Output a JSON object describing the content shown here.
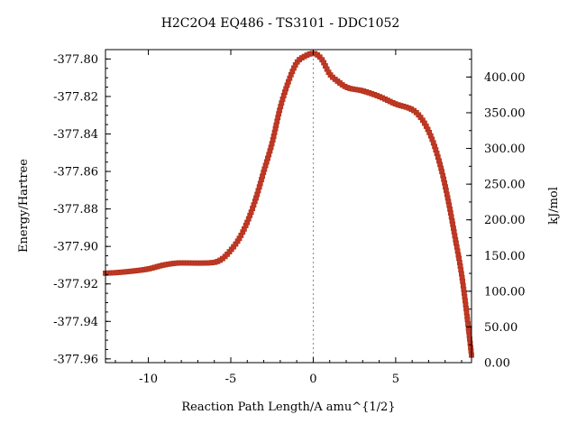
{
  "chart_data": {
    "type": "line",
    "title": "H2C2O4    EQ486 - TS3101 - DDC1052",
    "xlabel": "Reaction Path Length/A amu^{1/2}",
    "ylabel": "Energy/Hartree",
    "y2label": "kJ/mol",
    "xlim": [
      -12.6,
      9.6
    ],
    "ylim": [
      -377.962,
      -377.795
    ],
    "y2lim": [
      0.0,
      438.4
    ],
    "x_ticks": [
      -10,
      -5,
      0,
      5
    ],
    "x_tick_labels": [
      "-10",
      "-5",
      "0",
      "5"
    ],
    "y_ticks": [
      -377.8,
      -377.82,
      -377.84,
      -377.86,
      -377.88,
      -377.9,
      -377.92,
      -377.94,
      -377.96
    ],
    "y_tick_labels": [
      "-377.80",
      "-377.82",
      "-377.84",
      "-377.86",
      "-377.88",
      "-377.90",
      "-377.92",
      "-377.94",
      "-377.96"
    ],
    "y2_ticks": [
      0,
      50,
      100,
      150,
      200,
      250,
      300,
      350,
      400
    ],
    "y2_tick_labels": [
      "0.00",
      "50.00",
      "100.00",
      "150.00",
      "200.00",
      "250.00",
      "300.00",
      "350.00",
      "400.00"
    ],
    "ts_x": 0,
    "colors": {
      "marker": "#c0392b",
      "curve": "#22aa22"
    },
    "series": [
      {
        "x": [
          -12.6,
          -12.0,
          -11.0,
          -10.0,
          -9.0,
          -8.0,
          -7.0,
          -6.0,
          -5.5,
          -5.0,
          -4.5,
          -4.0,
          -3.5,
          -3.0,
          -2.5,
          -2.0,
          -1.5,
          -1.0,
          -0.5,
          0.0,
          0.5,
          1.0,
          1.5,
          2.0,
          3.0,
          4.0,
          5.0,
          6.0,
          6.3,
          6.8,
          7.3,
          7.8,
          8.2,
          8.6,
          9.0,
          9.3,
          9.6
        ],
        "y": [
          -377.9143,
          -377.914,
          -377.9132,
          -377.912,
          -377.9098,
          -377.9088,
          -377.9089,
          -377.9085,
          -377.9065,
          -377.902,
          -377.896,
          -377.887,
          -377.875,
          -377.86,
          -377.845,
          -377.826,
          -377.812,
          -377.802,
          -377.7985,
          -377.797,
          -377.8,
          -377.808,
          -377.812,
          -377.815,
          -377.817,
          -377.82,
          -377.824,
          -377.827,
          -377.829,
          -377.835,
          -377.845,
          -377.86,
          -377.876,
          -377.895,
          -377.915,
          -377.935,
          -377.958
        ]
      }
    ]
  }
}
